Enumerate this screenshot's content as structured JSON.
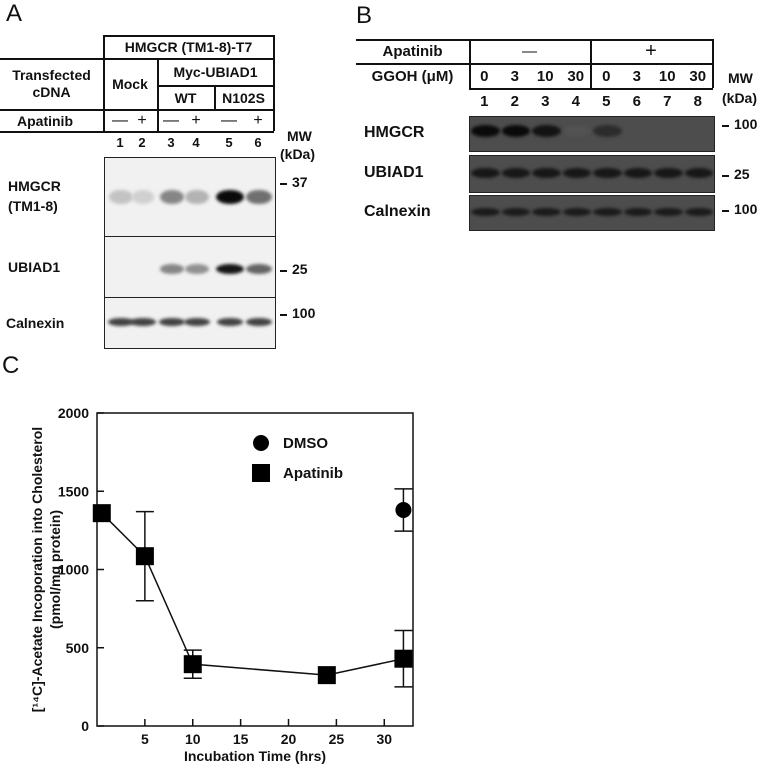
{
  "panels": {
    "a": "A",
    "b": "B",
    "c": "C"
  },
  "panel_a": {
    "construct_header": "HMGCR (TM1-8)-T7",
    "transfected_cdna_label": "Transfected\ncDNA",
    "mock_label": "Mock",
    "myc_label": "Myc-UBIAD1",
    "wt_label": "WT",
    "n102s_label": "N102S",
    "apatinib_label": "Apatinib",
    "treatments": [
      "—",
      "+",
      "—",
      "+",
      "—",
      "+"
    ],
    "lanes": [
      "1",
      "2",
      "3",
      "4",
      "5",
      "6"
    ],
    "mw_label": "MW",
    "kda_label": "(kDa)",
    "blots": [
      {
        "label": "HMGCR\n(TM1-8)",
        "mw": "37",
        "intensity": [
          0.18,
          0.12,
          0.45,
          0.25,
          1.0,
          0.55
        ]
      },
      {
        "label": "UBIAD1",
        "mw": "25",
        "intensity": [
          0.0,
          0.0,
          0.45,
          0.4,
          0.95,
          0.6
        ]
      },
      {
        "label": "Calnexin",
        "mw": "100",
        "intensity": [
          0.75,
          0.75,
          0.75,
          0.75,
          0.75,
          0.75
        ]
      }
    ]
  },
  "panel_b": {
    "apatinib_label": "Apatinib",
    "minus": "—",
    "plus": "+",
    "ggoh_label": "GGOH (μM)",
    "ggoh_values": [
      "0",
      "3",
      "10",
      "30",
      "0",
      "3",
      "10",
      "30"
    ],
    "lanes": [
      "1",
      "2",
      "3",
      "4",
      "5",
      "6",
      "7",
      "8"
    ],
    "mw_label": "MW",
    "kda_label": "(kDa)",
    "blots": [
      {
        "label": "HMGCR",
        "mw": "100",
        "intensity": [
          1.0,
          1.0,
          0.9,
          0.15,
          0.6,
          0.0,
          0.0,
          0.0
        ]
      },
      {
        "label": "UBIAD1",
        "mw": "25",
        "intensity": [
          0.85,
          0.85,
          0.85,
          0.85,
          0.85,
          0.85,
          0.85,
          0.85
        ]
      },
      {
        "label": "Calnexin",
        "mw": "100",
        "intensity": [
          0.8,
          0.8,
          0.8,
          0.8,
          0.8,
          0.8,
          0.8,
          0.8
        ]
      }
    ]
  },
  "chart_data": {
    "type": "scatter",
    "xlabel": "Incubation Time (hrs)",
    "ylabel_line1": "[¹⁴C]-Acetate Incoporation into Cholesterol",
    "ylabel_line2": "(pmol/mg protein)",
    "xlim": [
      0,
      33
    ],
    "ylim": [
      0,
      2000
    ],
    "xticks": [
      "5",
      "10",
      "15",
      "20",
      "25",
      "30"
    ],
    "xtick_values": [
      5,
      10,
      15,
      20,
      25,
      30
    ],
    "yticks": [
      "0",
      "500",
      "1000",
      "1500",
      "2000"
    ],
    "ytick_values": [
      0,
      500,
      1000,
      1500,
      2000
    ],
    "series": [
      {
        "name": "DMSO",
        "marker": "circle",
        "connected": false,
        "x": [
          32
        ],
        "y": [
          1380
        ],
        "err": [
          135
        ]
      },
      {
        "name": "Apatinib",
        "marker": "square",
        "connected": true,
        "x": [
          0.5,
          5,
          10,
          24,
          32
        ],
        "y": [
          1360,
          1085,
          395,
          325,
          430
        ],
        "err": [
          0,
          285,
          90,
          0,
          180
        ]
      }
    ]
  }
}
